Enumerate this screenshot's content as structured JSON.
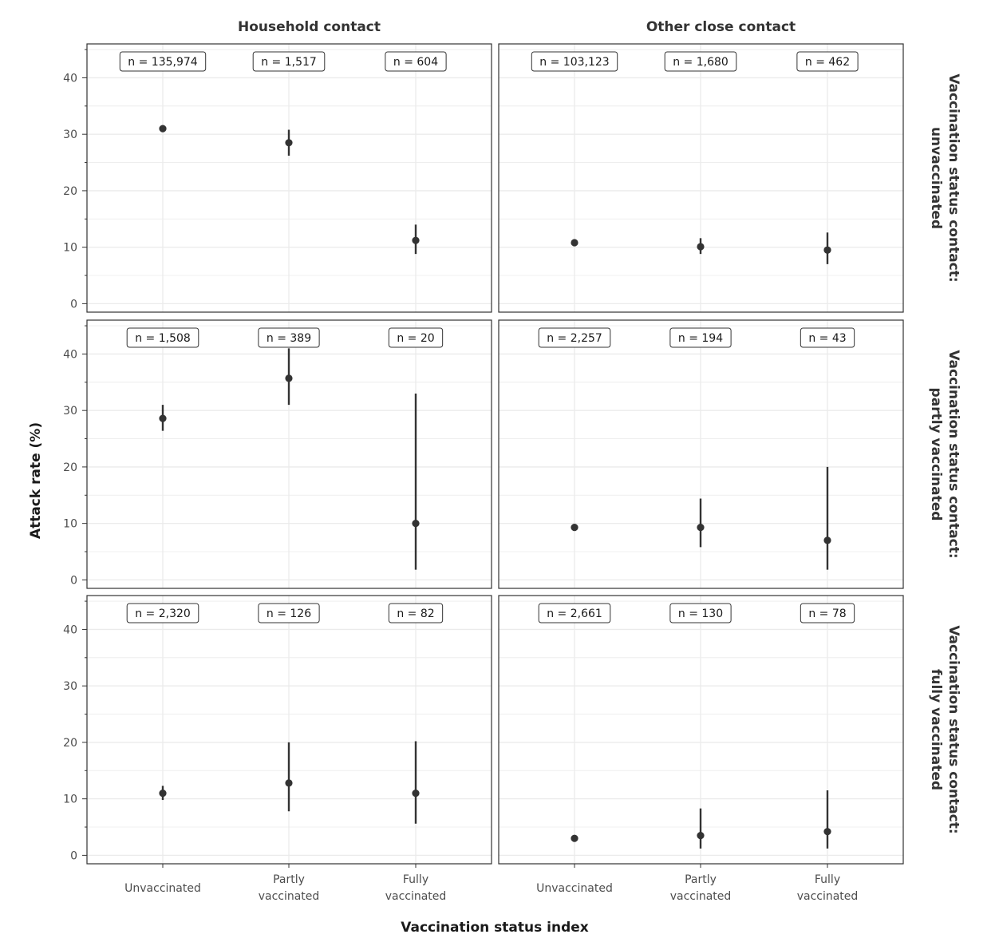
{
  "chart_data": {
    "type": "scatter",
    "xlabel": "Vaccination status index",
    "ylabel": "Attack rate (%)",
    "categories": [
      "Unvaccinated",
      "Partly vaccinated",
      "Fully vaccinated"
    ],
    "category_lines": [
      [
        "Unvaccinated"
      ],
      [
        "Partly",
        "vaccinated"
      ],
      [
        "Fully",
        "vaccinated"
      ]
    ],
    "ylim": [
      -1.5,
      46
    ],
    "yticks": [
      0,
      10,
      20,
      30,
      40
    ],
    "ytick_labels": [
      "0",
      "10",
      "20",
      "30",
      "40"
    ],
    "grid": true,
    "columns": [
      "Household contact",
      "Other close contact"
    ],
    "rows": [
      [
        "Vaccination status contact:",
        "unvaccinated"
      ],
      [
        "Vaccination status contact:",
        "partly vaccinated"
      ],
      [
        "Vaccination status contact:",
        "fully vaccinated"
      ]
    ],
    "panels": [
      {
        "row": 0,
        "col": 0,
        "n_labels": [
          "n = 135,974",
          "n = 1,517",
          "n = 604"
        ],
        "points": [
          {
            "y": 31.0,
            "lo": 30.8,
            "hi": 31.3
          },
          {
            "y": 28.5,
            "lo": 26.2,
            "hi": 30.8
          },
          {
            "y": 11.2,
            "lo": 8.8,
            "hi": 14.0
          }
        ]
      },
      {
        "row": 0,
        "col": 1,
        "n_labels": [
          "n = 103,123",
          "n = 1,680",
          "n = 462"
        ],
        "points": [
          {
            "y": 10.8,
            "lo": 10.6,
            "hi": 11.0
          },
          {
            "y": 10.1,
            "lo": 8.8,
            "hi": 11.6
          },
          {
            "y": 9.5,
            "lo": 7.0,
            "hi": 12.6
          }
        ]
      },
      {
        "row": 1,
        "col": 0,
        "n_labels": [
          "n = 1,508",
          "n = 389",
          "n = 20"
        ],
        "points": [
          {
            "y": 28.6,
            "lo": 26.4,
            "hi": 31.0
          },
          {
            "y": 35.7,
            "lo": 31.0,
            "hi": 41.0
          },
          {
            "y": 10.0,
            "lo": 1.8,
            "hi": 33.0
          }
        ]
      },
      {
        "row": 1,
        "col": 1,
        "n_labels": [
          "n = 2,257",
          "n = 194",
          "n = 43"
        ],
        "points": [
          {
            "y": 9.3,
            "lo": 9.0,
            "hi": 9.6
          },
          {
            "y": 9.3,
            "lo": 5.8,
            "hi": 14.4
          },
          {
            "y": 7.0,
            "lo": 1.8,
            "hi": 20.0
          }
        ]
      },
      {
        "row": 2,
        "col": 0,
        "n_labels": [
          "n = 2,320",
          "n = 126",
          "n = 82"
        ],
        "points": [
          {
            "y": 11.0,
            "lo": 9.8,
            "hi": 12.3
          },
          {
            "y": 12.8,
            "lo": 7.8,
            "hi": 20.0
          },
          {
            "y": 11.0,
            "lo": 5.6,
            "hi": 20.2
          }
        ]
      },
      {
        "row": 2,
        "col": 1,
        "n_labels": [
          "n = 2,661",
          "n = 130",
          "n = 78"
        ],
        "points": [
          {
            "y": 3.0,
            "lo": 2.4,
            "hi": 3.6
          },
          {
            "y": 3.5,
            "lo": 1.2,
            "hi": 8.3
          },
          {
            "y": 4.2,
            "lo": 1.2,
            "hi": 11.5
          }
        ]
      }
    ],
    "colors": {
      "points": "#333333",
      "grid": "#ebebeb",
      "border": "#333333"
    }
  }
}
